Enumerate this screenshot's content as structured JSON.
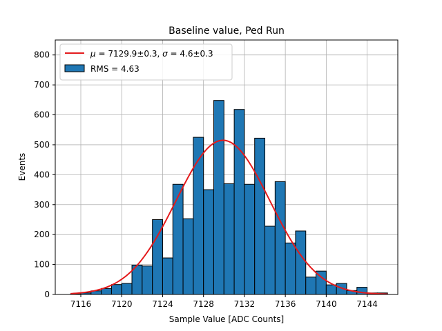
{
  "chart_data": {
    "type": "bar",
    "title": "Baseline value, Ped Run",
    "xlabel": "Sample Value [ADC Counts]",
    "ylabel": "Events",
    "xlim": [
      7113.5,
      7147.0
    ],
    "ylim": [
      0,
      850
    ],
    "grid": true,
    "legend_position": "top-left",
    "x_ticks": [
      7116,
      7120,
      7124,
      7128,
      7132,
      7136,
      7140,
      7144
    ],
    "y_ticks": [
      0,
      100,
      200,
      300,
      400,
      500,
      600,
      700,
      800
    ],
    "bin_width": 1,
    "histogram": {
      "name": "RMS = 4.63",
      "color": "#1f77b4",
      "edge_color": "#000000",
      "bins_start": [
        7115,
        7116,
        7117,
        7118,
        7119,
        7120,
        7121,
        7122,
        7123,
        7124,
        7125,
        7126,
        7127,
        7128,
        7129,
        7130,
        7131,
        7132,
        7133,
        7134,
        7135,
        7136,
        7137,
        7138,
        7139,
        7140,
        7141,
        7142,
        7143,
        7144,
        7145
      ],
      "counts": [
        2,
        5,
        12,
        20,
        33,
        37,
        98,
        95,
        250,
        122,
        368,
        253,
        525,
        350,
        648,
        370,
        618,
        368,
        522,
        228,
        377,
        172,
        212,
        58,
        78,
        32,
        37,
        13,
        24,
        5,
        5
      ]
    },
    "fit": {
      "name": "μ = 7129.9±0.3, σ = 4.6±0.3",
      "label_parts": {
        "mu_symbol": "μ",
        "mu_text": " = 7129.9±0.3, ",
        "sigma_symbol": "σ",
        "sigma_text": " = 4.6±0.3"
      },
      "type": "gaussian",
      "mean": 7129.9,
      "sigma": 4.6,
      "amplitude": 515,
      "x_range": [
        7115,
        7146
      ],
      "color": "#e41a1c"
    }
  }
}
